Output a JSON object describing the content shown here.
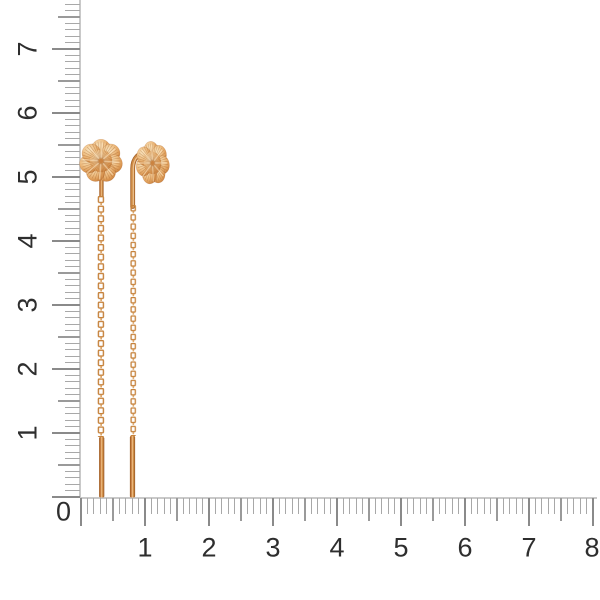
{
  "page": {
    "background": "#ffffff",
    "description_label": ""
  },
  "rulers": {
    "origin_label": "0",
    "unit": "cm",
    "label_color": "#2e2e2e",
    "tick_color_minor": "#a8a8a8",
    "tick_color_half": "#9a9a9a",
    "tick_color_major": "#8a8a8a",
    "baseline_color": "#c9c9c9",
    "vertical": {
      "labels": [
        "1",
        "2",
        "3",
        "4",
        "5",
        "6",
        "7"
      ],
      "mm_tick_count": 78
    },
    "horizontal": {
      "labels": [
        "1",
        "2",
        "3",
        "4",
        "5",
        "6",
        "7",
        "8"
      ],
      "mm_tick_count": 81
    }
  },
  "product": {
    "colors": {
      "gold_highlight": "#f8e3bd",
      "gold_light": "#f0c288",
      "gold_mid": "#de9c57",
      "gold_deep": "#bd7334",
      "gold_shadow": "#9a5820",
      "chain_stroke": "#c5813a"
    }
  }
}
